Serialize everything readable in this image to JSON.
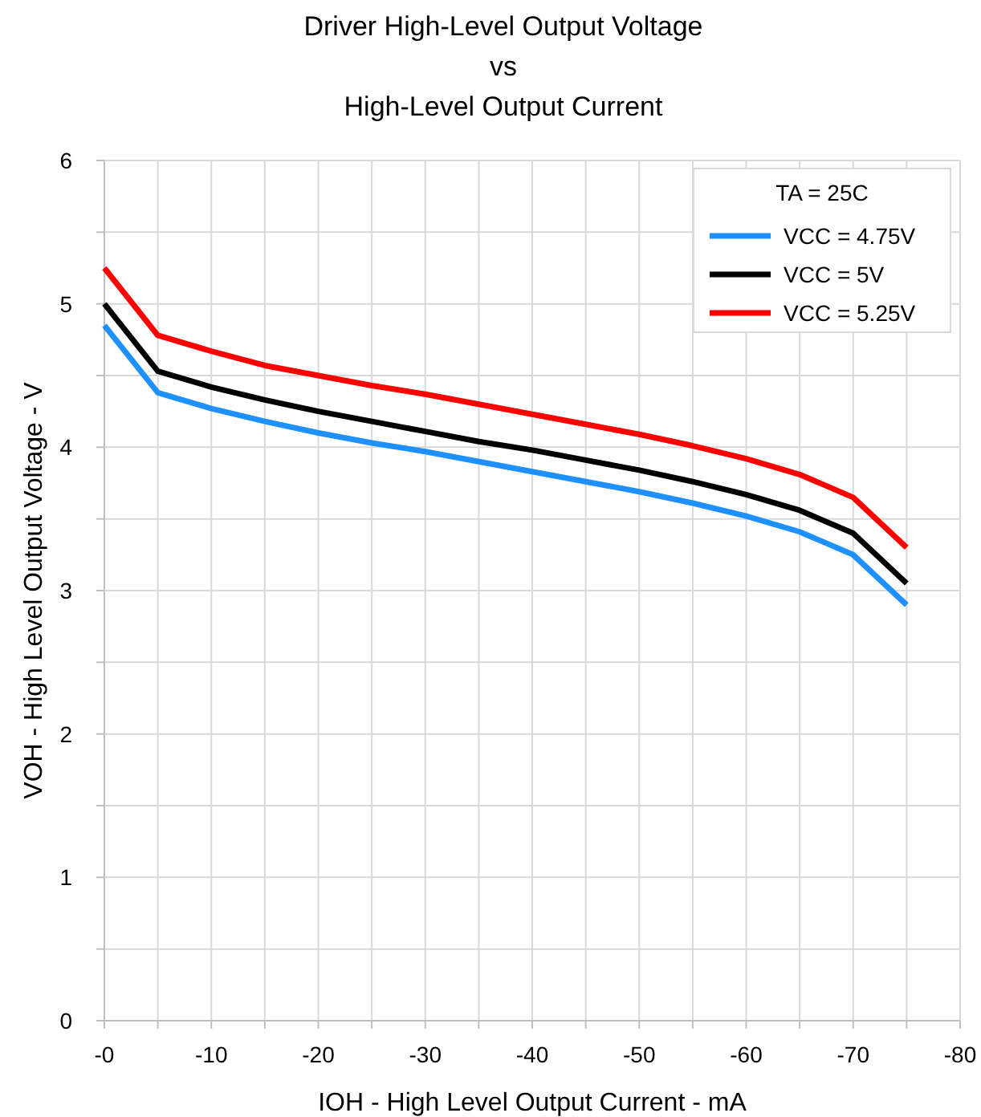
{
  "chart_data": {
    "type": "line",
    "title": "Driver High-Level Output Voltage\nvs\nHigh-Level Output Current",
    "xlabel": "IOH - High Level Output Current - mA",
    "ylabel": "VOH - High Level Output Voltage - V",
    "legend_title": "TA = 25C",
    "x": [
      0,
      -5,
      -10,
      -15,
      -20,
      -25,
      -30,
      -35,
      -40,
      -45,
      -50,
      -55,
      -60,
      -65,
      -70,
      -75
    ],
    "series": [
      {
        "name": "VCC = 4.75V",
        "color": "#1e90ff",
        "values": [
          4.85,
          4.38,
          4.27,
          4.18,
          4.1,
          4.03,
          3.97,
          3.9,
          3.83,
          3.76,
          3.69,
          3.61,
          3.52,
          3.41,
          3.25,
          2.9
        ]
      },
      {
        "name": "VCC = 5V",
        "color": "#000000",
        "values": [
          5.0,
          4.53,
          4.42,
          4.33,
          4.25,
          4.18,
          4.11,
          4.04,
          3.98,
          3.91,
          3.84,
          3.76,
          3.67,
          3.56,
          3.4,
          3.05
        ]
      },
      {
        "name": "VCC = 5.25V",
        "color": "#ff0000",
        "values": [
          5.25,
          4.78,
          4.67,
          4.57,
          4.5,
          4.43,
          4.37,
          4.3,
          4.23,
          4.16,
          4.09,
          4.01,
          3.92,
          3.81,
          3.65,
          3.3
        ]
      }
    ],
    "xlim": [
      0,
      -80
    ],
    "xticks": [
      {
        "value": 0,
        "label": "-0"
      },
      {
        "value": -5,
        "label": null
      },
      -10,
      {
        "value": -15,
        "label": null
      },
      -20,
      {
        "value": -25,
        "label": null
      },
      -30,
      {
        "value": -35,
        "label": null
      },
      -40,
      {
        "value": -45,
        "label": null
      },
      -50,
      {
        "value": -55,
        "label": null
      },
      -60,
      {
        "value": -65,
        "label": null
      },
      -70,
      {
        "value": -75,
        "label": null
      },
      -80
    ],
    "ylim": [
      0,
      6
    ],
    "yticks": [
      0,
      {
        "value": 0.5,
        "label": null
      },
      1,
      {
        "value": 1.5,
        "label": null
      },
      2,
      {
        "value": 2.5,
        "label": null
      },
      3,
      {
        "value": 3.5,
        "label": null
      },
      4,
      {
        "value": 4.5,
        "label": null
      },
      5,
      {
        "value": 5.5,
        "label": null
      },
      6
    ],
    "grid": true,
    "legend": "top right",
    "marker": "none",
    "line_style": "solid"
  }
}
